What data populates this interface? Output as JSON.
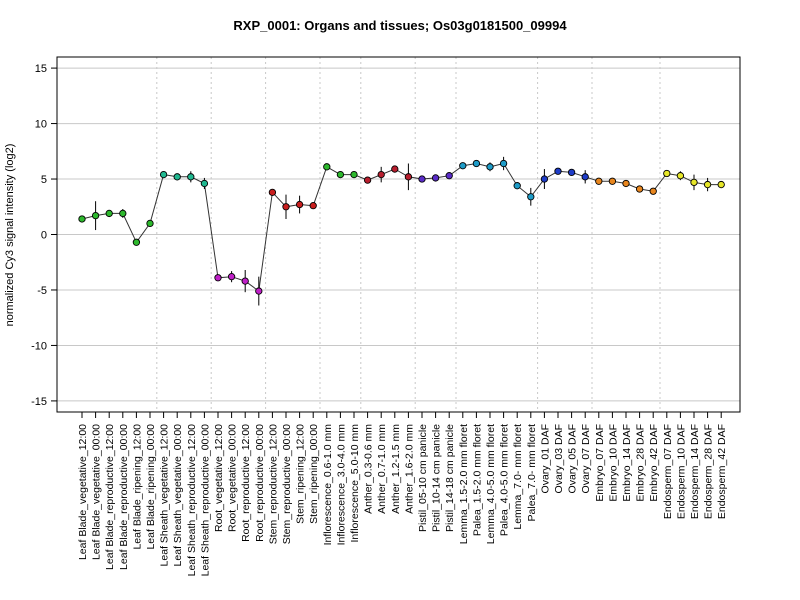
{
  "chart_data": {
    "type": "line",
    "title": "RXP_0001: Organs and tissues; Os03g0181500_09994",
    "ylabel": "normalized Cy3 signal intensity (log2)",
    "xlabel": "",
    "ylim": [
      -16,
      16
    ],
    "yticks": [
      -15,
      -10,
      -5,
      0,
      5,
      10,
      15
    ],
    "grid": "horizontal at y ticks; vertical dotted at group boundaries",
    "categories": [
      "Leaf Blade_vegetative_12:00",
      "Leaf Blade_vegetative_00:00",
      "Leaf Blade_reproductive_12:00",
      "Leaf Blade_reproductive_00:00",
      "Leaf Blade_ripening_12:00",
      "Leaf Blade_ripening_00:00",
      "Leaf Sheath_vegetative_12:00",
      "Leaf Sheath_vegetative_00:00",
      "Leaf Sheath_reproductive_12:00",
      "Leaf Sheath_reproductive_00:00",
      "Root_vegetative_12:00",
      "Root_vegetative_00:00",
      "Root_reproductive_12:00",
      "Root_reproductive_00:00",
      "Stem_reproductive_12:00",
      "Stem_reproductive_00:00",
      "Stem_ripening_12:00",
      "Stem_ripening_00:00",
      "Inflorescence_0.6-1.0 mm",
      "Inflorescence_3.0-4.0 mm",
      "Inflorescence_5.0-10 mm",
      "Anther_0.3-0.6 mm",
      "Anther_0.7-1.0 mm",
      "Anther_1.2-1.5 mm",
      "Anther_1.6-2.0 mm",
      "Pistil_05-10 cm panicle",
      "Pistil_10-14 cm panicle",
      "Pistil_14-18 cm panicle",
      "Lemma_1.5-2.0 mm floret",
      "Palea_1.5-2.0 mm floret",
      "Lemma_4.0-5.0 mm floret",
      "Palea_4.0-5.0 mm floret",
      "Lemma_7.0- mm floret",
      "Palea_7.0- mm floret",
      "Ovary_01 DAF",
      "Ovary_03 DAF",
      "Ovary_05 DAF",
      "Ovary_07 DAF",
      "Embryo_07 DAF",
      "Embryo_10 DAF",
      "Embryo_14 DAF",
      "Embryo_28 DAF",
      "Embryo_42 DAF",
      "Endosperm_07 DAF",
      "Endosperm_10 DAF",
      "Endosperm_14 DAF",
      "Endosperm_28 DAF",
      "Endosperm_42 DAF"
    ],
    "series": [
      {
        "values": [
          1.4,
          1.7,
          1.9,
          1.9,
          -0.7,
          1.0,
          5.4,
          5.2,
          5.2,
          4.6,
          -3.9,
          -3.8,
          -4.2,
          -5.1,
          3.8,
          2.5,
          2.7,
          2.6,
          6.1,
          5.4,
          5.4,
          4.9,
          5.4,
          5.9,
          5.2,
          5.0,
          5.1,
          5.3,
          6.2,
          6.4,
          6.1,
          6.4,
          4.4,
          3.4,
          5.0,
          5.7,
          5.6,
          5.2,
          4.8,
          4.8,
          4.6,
          4.1,
          3.9,
          5.5,
          5.3,
          4.7,
          4.5,
          4.5
        ],
        "errors": [
          0.3,
          1.3,
          0.3,
          0.4,
          0.2,
          0.3,
          0.2,
          0.2,
          0.5,
          0.5,
          0.2,
          0.5,
          1.0,
          1.3,
          0.2,
          1.1,
          0.8,
          0.2,
          0.2,
          0.3,
          0.3,
          0.2,
          0.7,
          0.2,
          1.2,
          0.2,
          0.2,
          0.2,
          0.2,
          0.2,
          0.4,
          0.6,
          0.2,
          0.8,
          0.9,
          0.2,
          0.2,
          0.6,
          0.2,
          0.2,
          0.3,
          0.2,
          0.2,
          0.2,
          0.4,
          0.7,
          0.6,
          0.2
        ]
      }
    ],
    "groups": [
      {
        "start": 0,
        "end": 5,
        "color": "#2db82d"
      },
      {
        "start": 6,
        "end": 9,
        "color": "#20b890"
      },
      {
        "start": 10,
        "end": 13,
        "color": "#c020c8"
      },
      {
        "start": 14,
        "end": 17,
        "color": "#c81e1e"
      },
      {
        "start": 18,
        "end": 20,
        "color": "#2db82d"
      },
      {
        "start": 21,
        "end": 24,
        "color": "#b81e2e"
      },
      {
        "start": 25,
        "end": 27,
        "color": "#5a2cc8"
      },
      {
        "start": 28,
        "end": 33,
        "color": "#1e9cc8"
      },
      {
        "start": 34,
        "end": 37,
        "color": "#1e3cc8"
      },
      {
        "start": 38,
        "end": 42,
        "color": "#e8861e"
      },
      {
        "start": 43,
        "end": 47,
        "color": "#e6e629"
      }
    ]
  }
}
